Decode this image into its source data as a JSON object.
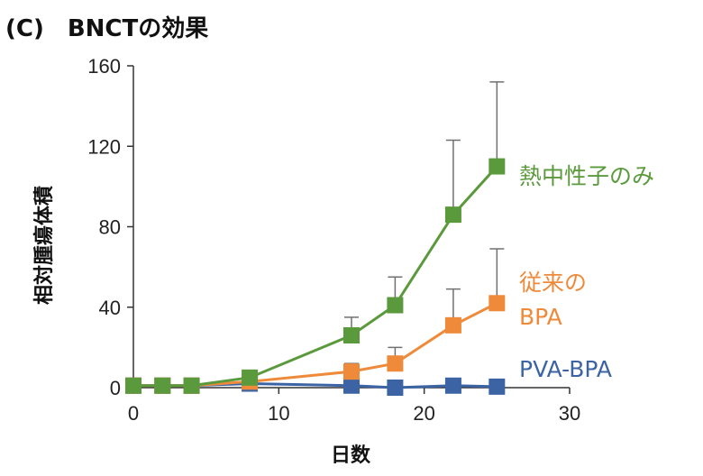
{
  "chart_data": {
    "type": "line",
    "title": "(C)　BNCTの効果",
    "xlabel": "日数",
    "ylabel": "相対腫瘍体積",
    "xlim": [
      0,
      30
    ],
    "ylim": [
      0,
      160
    ],
    "xticks": [
      "0",
      "10",
      "20",
      "30"
    ],
    "yticks": [
      "0",
      "40",
      "80",
      "120",
      "160"
    ],
    "grid": false,
    "series": [
      {
        "name": "熱中性子のみ",
        "color": "#5b9a3c",
        "x": [
          0,
          2,
          4,
          8,
          15,
          18,
          22,
          25
        ],
        "y": [
          1,
          1,
          1,
          5,
          26,
          41,
          86,
          110
        ],
        "err_upper": [
          0,
          0,
          0,
          0,
          35,
          55,
          123,
          152
        ]
      },
      {
        "name": "従来のBPA",
        "label_lines": [
          "従来の",
          "BPA"
        ],
        "color": "#ee8a3a",
        "x": [
          0,
          2,
          4,
          8,
          15,
          18,
          22,
          25
        ],
        "y": [
          1,
          1,
          1,
          3,
          8,
          12,
          31,
          42
        ],
        "err_upper": [
          0,
          0,
          0,
          0,
          12,
          20,
          49,
          69
        ]
      },
      {
        "name": "PVA-BPA",
        "color": "#3c64a4",
        "x": [
          0,
          2,
          4,
          8,
          15,
          18,
          22,
          25
        ],
        "y": [
          1,
          1,
          1,
          2,
          1,
          0,
          1,
          0.5
        ],
        "err_upper": [
          0,
          0,
          0,
          0,
          0,
          0,
          0,
          0
        ]
      }
    ]
  }
}
